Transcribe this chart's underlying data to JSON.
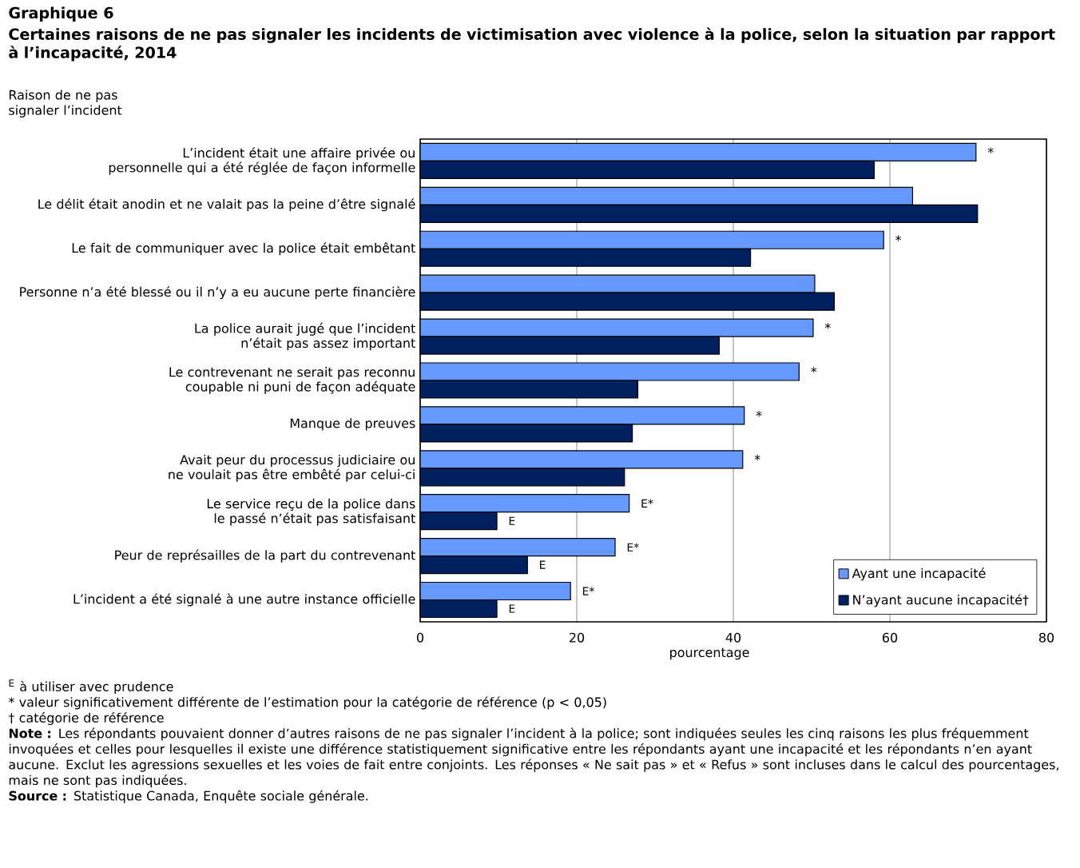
{
  "chart_data": {
    "type": "bar",
    "orientation": "horizontal",
    "title": "Graphique  6",
    "subtitle": "Certaines raisons de ne pas signaler les incidents de victimisation avec violence à la police, selon la situation par rapport à l’incapacité, 2014",
    "ylabel": "Raison de ne pas signaler l’incident",
    "xlabel": "pourcentage",
    "categories": [
      "L’incident était une affaire privée ou personnelle qui a été réglée de façon informelle",
      "Le délit était anodin et ne valait pas la peine d’être signalé",
      "Le fait de communiquer avec la police était embêtant",
      "Personne n’a été blessé ou il n’y a eu aucune perte financière",
      "La police aurait jugé que l’incident n’était pas assez important",
      "Le contrevenant ne serait pas reconnu coupable ni puni de façon adéquate",
      "Manque de preuves",
      "Avait peur du processus judiciaire ou ne voulait pas être embêté par celui-ci",
      "Le service reçu de la police dans le passé n’était pas satisfaisant",
      "Peur de représailles de la part du contrevenant",
      "L’incident a été signalé à une autre instance officielle"
    ],
    "series": [
      {
        "name": "Ayant une incapacité",
        "color": "#6699ff",
        "values": [
          71.0,
          62.9,
          59.2,
          50.4,
          50.2,
          48.4,
          41.4,
          41.2,
          26.7,
          24.9,
          19.2
        ],
        "value_labels": [
          "*",
          null,
          "*",
          null,
          "*",
          "*",
          "*",
          "*",
          "E*",
          "E*",
          "E*"
        ]
      },
      {
        "name": "N’ayant aucune incapacité†",
        "color": "#002060",
        "values": [
          58.0,
          71.2,
          42.2,
          52.9,
          38.2,
          27.8,
          27.1,
          26.1,
          9.8,
          13.7,
          9.8
        ],
        "value_labels": [
          null,
          null,
          null,
          null,
          null,
          null,
          null,
          null,
          "E",
          "E",
          "E"
        ]
      }
    ],
    "xlim": [
      0,
      80
    ],
    "xticks": [
      0,
      20,
      40,
      60,
      80
    ],
    "grid": "x",
    "legend": "bottom right",
    "annotations": [
      "$^{E}$ à utiliser avec prudence",
      "* valeur significativement différente de l’estimation pour la catégorie de référence (p < 0,05)",
      "† catégorie de référence",
      "**Note :** Les répondants pouvaient donner d’autres raisons de ne pas signaler l’incident à la police; sont indiquées seules les cinq raisons les plus fréquemment invoquées et celles pour lesquelles il existe une différence statistiquement significative entre les répondants ayant une incapacité et les répondants n’en ayant aucune. Exclut les agressions sexuelles et les voies de fait entre conjoints. Les réponses « Ne sait pas » et « Refus » sont incluses dans le calcul des pourcentages, mais ne sont pas indiquées.",
      "**Source :** Statistique Canada, Enquête sociale générale."
    ]
  }
}
